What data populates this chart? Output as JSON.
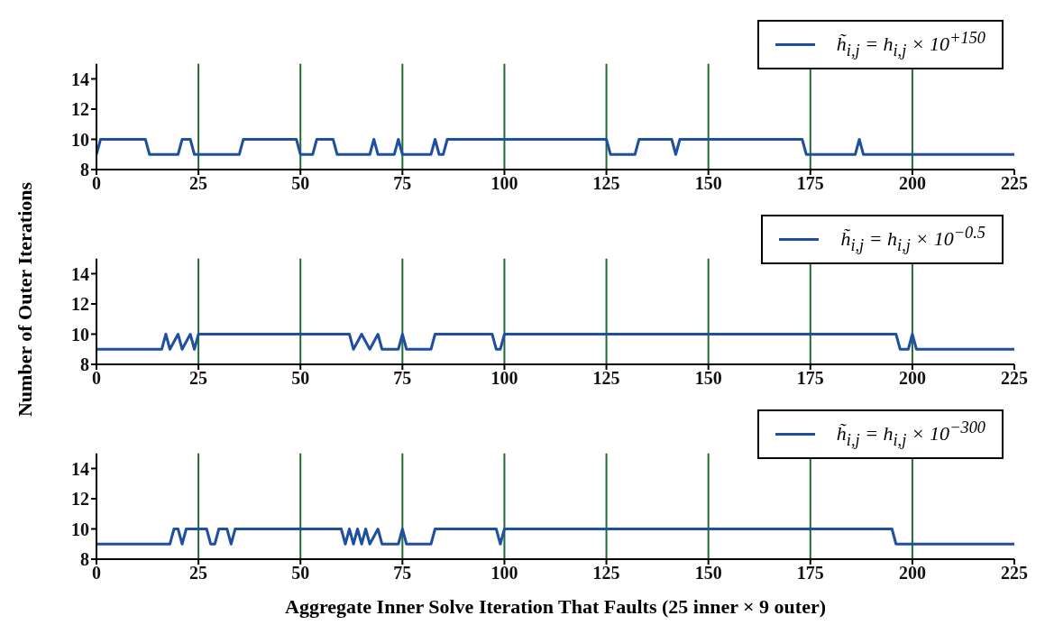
{
  "chart_data": [
    {
      "type": "line",
      "x": [
        0,
        1,
        12,
        13,
        20,
        21,
        23,
        24,
        35,
        36,
        49,
        50,
        53,
        54,
        58,
        59,
        67,
        68,
        69,
        73,
        74,
        75,
        82,
        83,
        84,
        85,
        86,
        125,
        126,
        132,
        133,
        141,
        142,
        143,
        173,
        174,
        186,
        187,
        188,
        225
      ],
      "series": [
        {
          "name": "h̃$_{i,j}$ = h$_{i,j}$ × 10$^{+150}$",
          "color": "#1f4fa0",
          "values": [
            9,
            10,
            10,
            9,
            9,
            10,
            10,
            9,
            9,
            10,
            10,
            9,
            9,
            10,
            10,
            9,
            9,
            10,
            9,
            9,
            10,
            9,
            9,
            10,
            9,
            9,
            10,
            10,
            9,
            9,
            10,
            10,
            9,
            10,
            10,
            9,
            9,
            10,
            9,
            9
          ]
        }
      ],
      "xlim": [
        0,
        225
      ],
      "xticks": [
        0,
        25,
        50,
        75,
        100,
        125,
        150,
        175,
        200,
        225
      ],
      "ylim": [
        8,
        15
      ],
      "yticks": [
        8,
        10,
        12,
        14
      ],
      "legend": "top right",
      "ref_lines": [
        {
          "axis": "x",
          "value": 25,
          "color": "#1e6b2e"
        },
        {
          "axis": "x",
          "value": 50,
          "color": "#1e6b2e"
        },
        {
          "axis": "x",
          "value": 75,
          "color": "#1e6b2e"
        },
        {
          "axis": "x",
          "value": 100,
          "color": "#1e6b2e"
        },
        {
          "axis": "x",
          "value": 125,
          "color": "#1e6b2e"
        },
        {
          "axis": "x",
          "value": 150,
          "color": "#1e6b2e"
        },
        {
          "axis": "x",
          "value": 175,
          "color": "#1e6b2e"
        },
        {
          "axis": "x",
          "value": 200,
          "color": "#1e6b2e"
        }
      ]
    },
    {
      "type": "line",
      "ylabel": "Number of Outer Iterations",
      "x": [
        0,
        16,
        17,
        18,
        20,
        21,
        23,
        24,
        25,
        62,
        63,
        65,
        67,
        69,
        70,
        74,
        75,
        76,
        82,
        83,
        97,
        98,
        99,
        100,
        196,
        197,
        199,
        200,
        201,
        225
      ],
      "series": [
        {
          "name": "h̃$_{i,j}$ = h$_{i,j}$ × 10$^{−0.5}$",
          "color": "#1f4fa0",
          "values": [
            9,
            9,
            10,
            9,
            10,
            9,
            10,
            9,
            10,
            10,
            9,
            10,
            9,
            10,
            9,
            9,
            10,
            9,
            9,
            10,
            10,
            9,
            9,
            10,
            10,
            9,
            9,
            10,
            9,
            9
          ]
        }
      ],
      "xlim": [
        0,
        225
      ],
      "xticks": [
        0,
        25,
        50,
        75,
        100,
        125,
        150,
        175,
        200,
        225
      ],
      "ylim": [
        8,
        15
      ],
      "yticks": [
        8,
        10,
        12,
        14
      ],
      "legend": "top right",
      "ref_lines": [
        {
          "axis": "x",
          "value": 25,
          "color": "#1e6b2e"
        },
        {
          "axis": "x",
          "value": 50,
          "color": "#1e6b2e"
        },
        {
          "axis": "x",
          "value": 75,
          "color": "#1e6b2e"
        },
        {
          "axis": "x",
          "value": 100,
          "color": "#1e6b2e"
        },
        {
          "axis": "x",
          "value": 125,
          "color": "#1e6b2e"
        },
        {
          "axis": "x",
          "value": 150,
          "color": "#1e6b2e"
        },
        {
          "axis": "x",
          "value": 175,
          "color": "#1e6b2e"
        },
        {
          "axis": "x",
          "value": 200,
          "color": "#1e6b2e"
        }
      ]
    },
    {
      "type": "line",
      "xlabel": "Aggregate Inner Solve Iteration That Faults (25 inner × 9 outer)",
      "x": [
        0,
        18,
        19,
        20,
        21,
        22,
        27,
        28,
        29,
        30,
        32,
        33,
        34,
        60,
        61,
        62,
        63,
        64,
        65,
        66,
        67,
        69,
        70,
        74,
        75,
        76,
        82,
        83,
        98,
        99,
        100,
        195,
        196,
        225
      ],
      "series": [
        {
          "name": "h̃$_{i,j}$ = h$_{i,j}$ × 10$^{−300}$",
          "color": "#1f4fa0",
          "values": [
            9,
            9,
            10,
            10,
            9,
            10,
            10,
            9,
            9,
            10,
            10,
            9,
            10,
            10,
            9,
            10,
            9,
            10,
            9,
            10,
            9,
            10,
            9,
            9,
            10,
            9,
            9,
            10,
            10,
            9,
            10,
            10,
            9,
            9
          ]
        }
      ],
      "xlim": [
        0,
        225
      ],
      "xticks": [
        0,
        25,
        50,
        75,
        100,
        125,
        150,
        175,
        200,
        225
      ],
      "ylim": [
        8,
        15
      ],
      "yticks": [
        8,
        10,
        12,
        14
      ],
      "legend": "top right",
      "ref_lines": [
        {
          "axis": "x",
          "value": 25,
          "color": "#1e6b2e"
        },
        {
          "axis": "x",
          "value": 50,
          "color": "#1e6b2e"
        },
        {
          "axis": "x",
          "value": 75,
          "color": "#1e6b2e"
        },
        {
          "axis": "x",
          "value": 100,
          "color": "#1e6b2e"
        },
        {
          "axis": "x",
          "value": 125,
          "color": "#1e6b2e"
        },
        {
          "axis": "x",
          "value": 150,
          "color": "#1e6b2e"
        },
        {
          "axis": "x",
          "value": 175,
          "color": "#1e6b2e"
        },
        {
          "axis": "x",
          "value": 200,
          "color": "#1e6b2e"
        }
      ]
    }
  ]
}
